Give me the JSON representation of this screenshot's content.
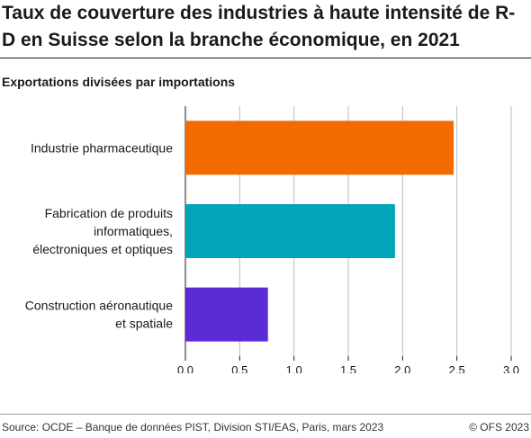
{
  "title": "Taux de couverture des industries à haute intensité de R-D en Suisse selon la branche économique, en 2021",
  "subtitle": "Exportations divisées par importations",
  "footer": {
    "source": "Source: OCDE – Banque de données PIST, Division STI/EAS, Paris, mars 2023",
    "copyright": "© OFS 2023"
  },
  "chart_data": {
    "type": "bar",
    "orientation": "horizontal",
    "title": "Taux de couverture des industries à haute intensité de R-D en Suisse selon la branche économique, en 2021",
    "subtitle": "Exportations divisées par importations",
    "categories": [
      [
        "Industrie pharmaceutique"
      ],
      [
        "Fabrication de produits",
        "informatiques,",
        "électroniques et optiques"
      ],
      [
        "Construction aéronautique",
        "et spatiale"
      ]
    ],
    "values": [
      2.47,
      1.93,
      0.76
    ],
    "colors": [
      "#f26a00",
      "#00a5b8",
      "#5b2bd6"
    ],
    "xlim": [
      0,
      3
    ],
    "xticks": [
      0,
      0.5,
      1,
      1.5,
      2,
      2.5,
      3
    ],
    "xtick_labels": [
      "0,0",
      "0,5",
      "1,0",
      "1,5",
      "2,0",
      "2,5",
      "3,0"
    ],
    "grid": true,
    "legend": "none"
  }
}
